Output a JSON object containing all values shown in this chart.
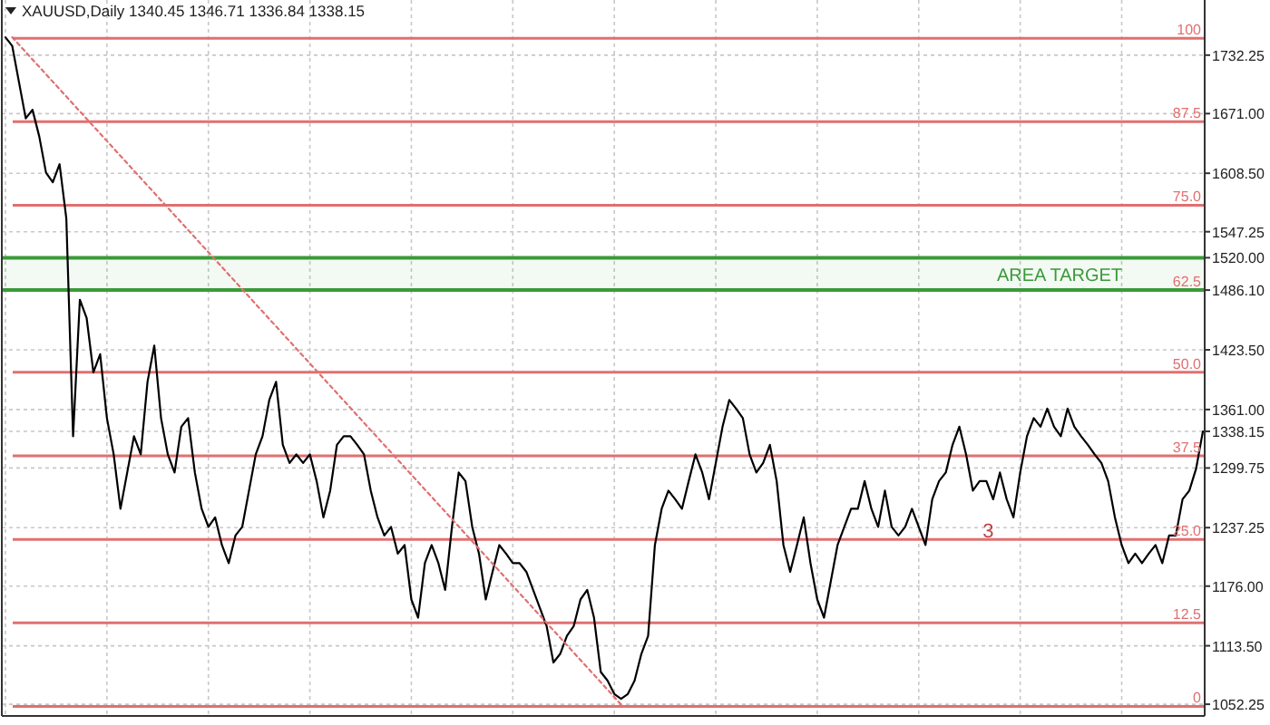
{
  "chart_data": {
    "type": "line",
    "title": "XAUUSD,Daily  1340.45 1346.71 1336.84 1338.15",
    "categories": [
      null,
      null,
      null,
      null,
      null,
      null,
      null,
      null,
      null,
      null,
      null,
      null,
      null,
      null,
      null,
      null,
      null,
      null,
      null,
      null,
      null,
      null,
      null,
      null,
      null,
      null,
      null,
      null,
      null,
      null,
      null,
      null,
      null,
      null,
      null,
      null,
      null,
      null,
      null,
      null,
      null,
      null,
      null,
      null,
      null,
      null,
      null,
      null,
      null,
      null,
      null,
      null,
      null,
      null,
      null,
      null,
      null,
      null,
      null,
      null,
      null,
      null,
      null,
      null,
      null,
      null,
      null,
      null,
      null,
      null,
      null,
      null,
      null,
      null,
      null,
      null,
      null,
      null,
      null,
      null,
      null,
      null,
      null,
      null,
      null,
      null,
      null,
      null,
      null,
      null,
      null,
      null,
      null,
      null,
      null,
      null,
      null,
      null,
      null,
      null,
      null,
      null,
      null,
      null,
      null,
      null,
      null,
      null,
      null,
      null,
      null,
      null,
      null,
      null,
      null,
      null,
      null,
      null,
      null,
      null,
      null,
      null,
      null,
      null,
      null,
      null,
      null,
      null,
      null,
      null,
      null,
      null,
      null,
      null,
      null,
      null,
      null,
      null,
      null,
      null,
      null,
      null,
      null,
      null,
      null,
      null,
      null,
      null,
      null,
      null,
      null,
      null,
      null,
      null,
      null,
      null,
      null,
      null,
      null,
      null,
      null,
      null,
      null,
      null,
      null,
      null,
      null,
      null,
      null,
      null,
      null,
      null,
      null,
      null,
      null,
      null,
      null,
      null
    ],
    "ylim": [
      1040,
      1790
    ],
    "yticks": [
      {
        "value": 1052.25,
        "label": "1052.25"
      },
      {
        "value": 1113.5,
        "label": "1113.50"
      },
      {
        "value": 1176,
        "label": "1176.00"
      },
      {
        "value": 1237.25,
        "label": "1237.25"
      },
      {
        "value": 1299.75,
        "label": "1299.75"
      },
      {
        "value": 1338.15,
        "label": "1338.15"
      },
      {
        "value": 1361,
        "label": "1361.00"
      },
      {
        "value": 1423.5,
        "label": "1423.50"
      },
      {
        "value": 1486.1,
        "label": "1486.10"
      },
      {
        "value": 1520,
        "label": "1520.00"
      },
      {
        "value": 1547.25,
        "label": "1547.25"
      },
      {
        "value": 1608.5,
        "label": "1608.50"
      },
      {
        "value": 1671,
        "label": "1671.00"
      },
      {
        "value": 1732.25,
        "label": "1732.25"
      }
    ],
    "tick_labels": "y",
    "grid": true,
    "series": [
      {
        "color": "#000000",
        "line_style": "solid",
        "values": [
          1751,
          1742,
          1704,
          1666,
          1675,
          1647,
          1609,
          1599,
          1618,
          1561,
          1333,
          1476,
          1457,
          1400,
          1419,
          1352,
          1314,
          1257,
          1295,
          1333,
          1314,
          1390,
          1428,
          1352,
          1314,
          1295,
          1343,
          1352,
          1295,
          1257,
          1238,
          1248,
          1219,
          1200,
          1229,
          1238,
          1276,
          1314,
          1333,
          1371,
          1390,
          1324,
          1305,
          1314,
          1305,
          1314,
          1286,
          1248,
          1276,
          1324,
          1333,
          1333,
          1324,
          1314,
          1276,
          1248,
          1229,
          1238,
          1210,
          1219,
          1162,
          1143,
          1200,
          1219,
          1200,
          1172,
          1238,
          1295,
          1286,
          1238,
          1210,
          1162,
          1191,
          1219,
          1210,
          1200,
          1200,
          1191,
          1172,
          1153,
          1134,
          1096,
          1105,
          1124,
          1134,
          1162,
          1172,
          1143,
          1086,
          1077,
          1063,
          1058,
          1063,
          1077,
          1105,
          1124,
          1219,
          1257,
          1276,
          1267,
          1257,
          1286,
          1314,
          1295,
          1267,
          1305,
          1343,
          1371,
          1362,
          1352,
          1314,
          1295,
          1305,
          1324,
          1286,
          1219,
          1191,
          1219,
          1248,
          1200,
          1162,
          1143,
          1181,
          1219,
          1238,
          1257,
          1257,
          1286,
          1257,
          1238,
          1276,
          1238,
          1229,
          1238,
          1257,
          1238,
          1219,
          1267,
          1286,
          1295,
          1324,
          1343,
          1314,
          1276,
          1286,
          1286,
          1267,
          1295,
          1267,
          1248,
          1295,
          1333,
          1352,
          1343,
          1362,
          1343,
          1333,
          1362,
          1343,
          1333,
          1324,
          1314,
          1305,
          1286,
          1248,
          1219,
          1200,
          1210,
          1200,
          1210,
          1219,
          1200,
          1229,
          1229,
          1267,
          1276,
          1299,
          1338
        ]
      },
      {
        "color": "#e07070",
        "line_style": "dotted",
        "values": [
          null,
          1751,
          null,
          null,
          null,
          null,
          null,
          null,
          null,
          null,
          null,
          null,
          null,
          null,
          null,
          null,
          null,
          null,
          null,
          null,
          null,
          null,
          null,
          null,
          null,
          null,
          null,
          null,
          null,
          null,
          null,
          null,
          null,
          null,
          null,
          null,
          null,
          null,
          null,
          null,
          null,
          null,
          null,
          null,
          null,
          null,
          null,
          null,
          null,
          null,
          null,
          null,
          null,
          null,
          null,
          null,
          null,
          null,
          null,
          null,
          null,
          null,
          null,
          null,
          null,
          null,
          null,
          null,
          null,
          null,
          null,
          null,
          null,
          null,
          null,
          null,
          null,
          null,
          null,
          null,
          null,
          null,
          null,
          null,
          null,
          null,
          null,
          null,
          null,
          null,
          null,
          1052,
          null,
          null,
          null,
          null,
          null,
          null,
          null,
          null,
          null,
          null,
          null,
          null,
          null,
          null,
          null,
          null,
          null,
          null,
          null,
          null,
          null,
          null,
          null,
          null,
          null,
          null,
          null,
          null,
          null,
          null,
          null,
          null,
          null,
          null,
          null,
          null,
          null,
          null,
          null,
          null,
          null,
          null,
          null,
          null,
          null,
          null,
          null,
          null,
          null,
          null,
          null,
          null,
          null,
          null,
          null,
          null,
          null,
          null,
          null,
          null,
          null,
          null,
          null,
          null,
          null,
          null,
          null,
          null,
          null,
          null,
          null,
          null,
          null,
          null,
          null,
          null,
          null,
          null,
          null,
          null,
          null,
          null,
          null,
          null,
          null,
          null
        ]
      }
    ],
    "ref_lines": [
      {
        "axis": "y",
        "value": 1750,
        "color": "#e07070"
      },
      {
        "axis": "y",
        "value": 1662.5,
        "color": "#e07070"
      },
      {
        "axis": "y",
        "value": 1575,
        "color": "#e07070"
      },
      {
        "axis": "y",
        "value": 1400,
        "color": "#e07070"
      },
      {
        "axis": "y",
        "value": 1312.5,
        "color": "#e07070"
      },
      {
        "axis": "y",
        "value": 1225,
        "color": "#e07070"
      },
      {
        "axis": "y",
        "value": 1137.5,
        "color": "#e07070"
      },
      {
        "axis": "y",
        "value": 1050,
        "color": "#e07070"
      }
    ],
    "bands": [
      {
        "axis": "y",
        "from": 1486.1,
        "to": 1520,
        "label": "AREA TARGET",
        "color": "#3a9a3a"
      }
    ],
    "annotations": [
      "100",
      "87.5",
      "75.0",
      "50.0",
      "37.5",
      "25.0",
      "12.5",
      "0",
      "62.5",
      "3"
    ]
  }
}
